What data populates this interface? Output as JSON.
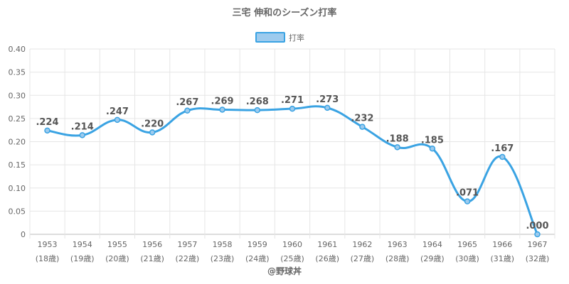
{
  "title": "三宅 伸和のシーズン打率",
  "legend": {
    "label": "打率"
  },
  "credit": "@野球丼",
  "colors": {
    "line": "#3aa3e3",
    "legend_fill": "#9dcbee",
    "legend_stroke": "#3aa3e3"
  },
  "chart_data": {
    "type": "line",
    "title": "三宅 伸和のシーズン打率",
    "x": [
      "1953",
      "1954",
      "1955",
      "1956",
      "1957",
      "1958",
      "1959",
      "1960",
      "1961",
      "1962",
      "1963",
      "1964",
      "1965",
      "1966",
      "1967"
    ],
    "x_sub": [
      "(18歳)",
      "(19歳)",
      "(20歳)",
      "(21歳)",
      "(22歳)",
      "(23歳)",
      "(24歳)",
      "(25歳)",
      "(26歳)",
      "(27歳)",
      "(28歳)",
      "(29歳)",
      "(30歳)",
      "(31歳)",
      "(32歳)"
    ],
    "series": [
      {
        "name": "打率",
        "values": [
          0.224,
          0.214,
          0.247,
          0.22,
          0.267,
          0.269,
          0.268,
          0.271,
          0.273,
          0.232,
          0.188,
          0.185,
          0.071,
          0.167,
          0.0
        ],
        "labels": [
          ".224",
          ".214",
          ".247",
          ".220",
          ".267",
          ".269",
          ".268",
          ".271",
          ".273",
          ".232",
          ".188",
          ".185",
          ".071",
          ".167",
          ".000"
        ]
      }
    ],
    "ylim": [
      0,
      0.4
    ],
    "yticks": [
      "0.40",
      "0.35",
      "0.30",
      "0.25",
      "0.20",
      "0.15",
      "0.10",
      "0.05",
      "0"
    ],
    "ytick_values": [
      0.4,
      0.35,
      0.3,
      0.25,
      0.2,
      0.15,
      0.1,
      0.05,
      0
    ],
    "grid": true,
    "legend_position": "top"
  }
}
